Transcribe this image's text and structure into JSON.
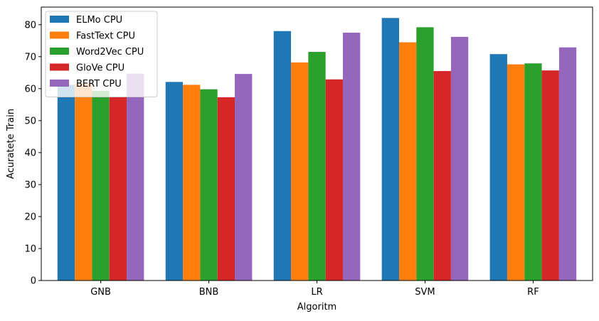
{
  "chart_data": {
    "type": "bar",
    "title": "",
    "xlabel": "Algoritm",
    "ylabel": "Acuratețe Train",
    "ylim": [
      0,
      85.5
    ],
    "yticks": [
      0,
      10,
      20,
      30,
      40,
      50,
      60,
      70,
      80
    ],
    "grid": false,
    "legend_position": "upper-left",
    "categories": [
      "GNB",
      "BNB",
      "LR",
      "SVM",
      "RF"
    ],
    "series": [
      {
        "name": "ELMo CPU",
        "color": "#1f77b4",
        "values": [
          61.2,
          62.1,
          78.0,
          82.1,
          70.8
        ]
      },
      {
        "name": "FastText CPU",
        "color": "#ff7f0e",
        "values": [
          61.5,
          61.2,
          68.2,
          74.5,
          67.6
        ]
      },
      {
        "name": "Word2Vec CPU",
        "color": "#2ca02c",
        "values": [
          59.3,
          59.8,
          71.5,
          79.2,
          67.9
        ]
      },
      {
        "name": "GloVe CPU",
        "color": "#d62728",
        "values": [
          57.5,
          57.3,
          62.9,
          65.5,
          65.7
        ]
      },
      {
        "name": "BERT CPU",
        "color": "#9467bd",
        "values": [
          64.7,
          64.6,
          77.5,
          76.2,
          72.9
        ]
      }
    ]
  }
}
